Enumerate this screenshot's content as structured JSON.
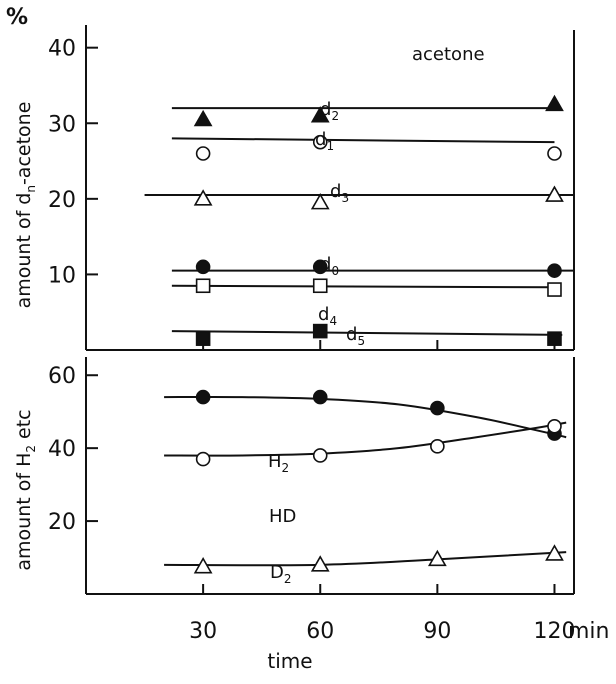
{
  "chart_data": [
    {
      "type": "scatter",
      "title": "acetone",
      "ylabel_prefix": "amount of d",
      "ylabel_sub": "n",
      "ylabel_suffix": "-acetone",
      "yunit": "%",
      "ylim": [
        0,
        43
      ],
      "yticks": [
        10,
        20,
        30,
        40
      ],
      "xlim": [
        0,
        125
      ],
      "grid": false,
      "series": [
        {
          "name": "d",
          "sub": "2",
          "marker": "filled-triangle",
          "x": [
            30,
            60,
            120
          ],
          "y": [
            30.5,
            31,
            32.5
          ],
          "fit": [
            [
              22,
              32
            ],
            [
              120,
              32
            ]
          ]
        },
        {
          "name": "d",
          "sub": "1",
          "marker": "open-circle",
          "x": [
            30,
            60,
            120
          ],
          "y": [
            26,
            27.5,
            26
          ],
          "fit": [
            [
              22,
              28
            ],
            [
              120,
              27.5
            ]
          ]
        },
        {
          "name": "d",
          "sub": "3",
          "marker": "open-triangle",
          "x": [
            30,
            60,
            120
          ],
          "y": [
            20,
            19.5,
            20.5
          ],
          "fit": [
            [
              15,
              20.5
            ],
            [
              125,
              20.5
            ]
          ]
        },
        {
          "name": "d",
          "sub": "0",
          "marker": "filled-circle",
          "x": [
            30,
            60,
            120
          ],
          "y": [
            11,
            11,
            10.5
          ],
          "fit": [
            [
              22,
              10.5
            ],
            [
              125,
              10.5
            ]
          ]
        },
        {
          "name": "d",
          "sub": "4",
          "marker": "open-square",
          "x": [
            30,
            60,
            120
          ],
          "y": [
            8.5,
            8.5,
            8
          ],
          "fit": [
            [
              22,
              8.5
            ],
            [
              120,
              8.3
            ]
          ]
        },
        {
          "name": "d",
          "sub": "5",
          "marker": "filled-square",
          "x": [
            30,
            60,
            120
          ],
          "y": [
            1.5,
            2.5,
            1.5
          ],
          "fit": [
            [
              22,
              2.5
            ],
            [
              122,
              2
            ]
          ]
        }
      ]
    },
    {
      "type": "line",
      "ylabel_prefix": "amount of H",
      "ylabel_sub": "2",
      "ylabel_suffix": " etc",
      "ylim": [
        0,
        65
      ],
      "yticks": [
        20,
        40,
        60
      ],
      "xlabel": "time",
      "xunit": "min",
      "xticks": [
        30,
        60,
        90,
        120
      ],
      "xlim": [
        0,
        125
      ],
      "grid": false,
      "series": [
        {
          "name": "H",
          "sub": "2",
          "marker": "filled-circle",
          "x": [
            30,
            60,
            90,
            120
          ],
          "y": [
            54,
            54,
            51,
            44
          ],
          "fit": [
            [
              20,
              54
            ],
            [
              40,
              54
            ],
            [
              60,
              53.5
            ],
            [
              80,
              52
            ],
            [
              100,
              48.5
            ],
            [
              115,
              45
            ],
            [
              123,
              43
            ]
          ]
        },
        {
          "name": "HD",
          "sub": "",
          "marker": "open-circle",
          "x": [
            30,
            60,
            90,
            120
          ],
          "y": [
            37,
            38,
            40.5,
            46
          ],
          "fit": [
            [
              20,
              38
            ],
            [
              40,
              38
            ],
            [
              60,
              38.5
            ],
            [
              80,
              40
            ],
            [
              100,
              43
            ],
            [
              115,
              45.5
            ],
            [
              123,
              47
            ]
          ]
        },
        {
          "name": "D",
          "sub": "2",
          "marker": "open-triangle",
          "x": [
            30,
            60,
            90,
            120
          ],
          "y": [
            7.5,
            8,
            9.5,
            11
          ],
          "fit": [
            [
              20,
              8
            ],
            [
              60,
              8
            ],
            [
              90,
              9.5
            ],
            [
              123,
              11.5
            ]
          ]
        }
      ]
    }
  ]
}
